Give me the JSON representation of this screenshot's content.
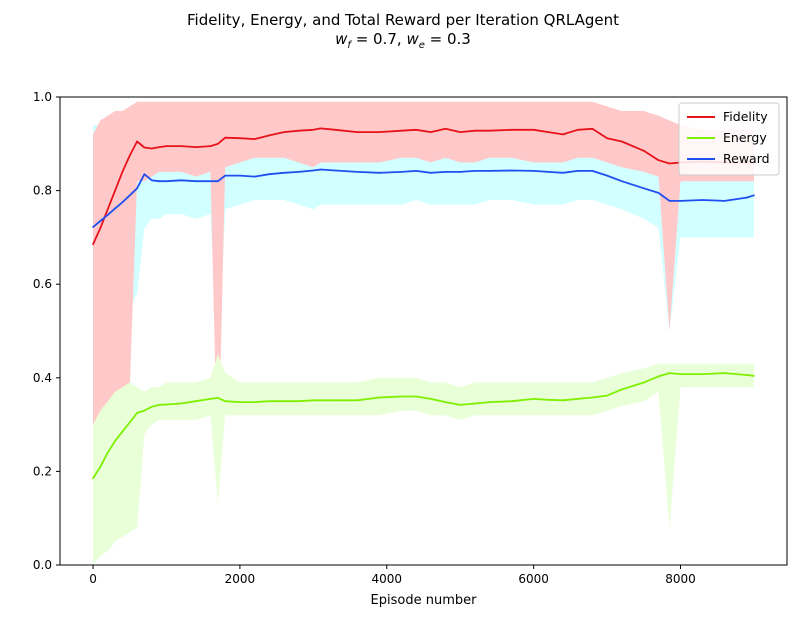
{
  "chart_data": {
    "type": "line",
    "title": "Fidelity, Energy, and Total Reward per Iteration QRLAgent",
    "subtitle": "w_f = 0.7, w_e = 0.3",
    "xlabel": "Episode number",
    "ylabel": "",
    "xlim": [
      -450,
      9450
    ],
    "ylim": [
      0.0,
      1.0
    ],
    "xticks": [
      0,
      2000,
      4000,
      6000,
      8000
    ],
    "xtick_labels": [
      "0",
      "2000",
      "4000",
      "6000",
      "8000"
    ],
    "yticks": [
      0.0,
      0.2,
      0.4,
      0.6,
      0.8,
      1.0
    ],
    "ytick_labels": [
      "0.0",
      "0.2",
      "0.4",
      "0.6",
      "0.8",
      "1.0"
    ],
    "grid": false,
    "legend_position": "top-right",
    "x": [
      0,
      100,
      200,
      300,
      400,
      500,
      600,
      700,
      800,
      900,
      1000,
      1200,
      1400,
      1600,
      1700,
      1800,
      2000,
      2200,
      2400,
      2600,
      2800,
      3000,
      3100,
      3300,
      3600,
      3900,
      4200,
      4400,
      4600,
      4800,
      5000,
      5200,
      5400,
      5700,
      6000,
      6200,
      6400,
      6600,
      6800,
      7000,
      7200,
      7500,
      7700,
      7850,
      8000,
      8300,
      8600,
      8900,
      9000
    ],
    "series": [
      {
        "name": "Fidelity",
        "color": "#e8121b",
        "band_color": "#ffc9c9",
        "values": [
          0.685,
          0.72,
          0.76,
          0.8,
          0.84,
          0.875,
          0.905,
          0.892,
          0.89,
          0.893,
          0.895,
          0.895,
          0.893,
          0.895,
          0.9,
          0.913,
          0.912,
          0.91,
          0.918,
          0.925,
          0.928,
          0.93,
          0.933,
          0.93,
          0.925,
          0.925,
          0.928,
          0.93,
          0.925,
          0.932,
          0.925,
          0.928,
          0.928,
          0.93,
          0.93,
          0.925,
          0.92,
          0.93,
          0.932,
          0.912,
          0.905,
          0.885,
          0.865,
          0.858,
          0.86,
          0.862,
          0.86,
          0.86,
          0.86
        ],
        "band_low": [
          0.08,
          0.14,
          0.2,
          0.24,
          0.3,
          0.38,
          0.82,
          0.82,
          0.83,
          0.84,
          0.84,
          0.84,
          0.83,
          0.84,
          0.18,
          0.85,
          0.86,
          0.87,
          0.87,
          0.87,
          0.86,
          0.85,
          0.86,
          0.86,
          0.86,
          0.86,
          0.87,
          0.87,
          0.86,
          0.87,
          0.86,
          0.86,
          0.87,
          0.87,
          0.86,
          0.86,
          0.86,
          0.87,
          0.87,
          0.86,
          0.85,
          0.84,
          0.83,
          0.5,
          0.82,
          0.82,
          0.82,
          0.82,
          0.82
        ],
        "band_high": [
          0.92,
          0.95,
          0.96,
          0.97,
          0.97,
          0.98,
          0.99,
          0.99,
          0.99,
          0.99,
          0.99,
          0.99,
          0.99,
          0.99,
          0.99,
          0.99,
          0.99,
          0.99,
          0.99,
          0.99,
          0.99,
          0.99,
          0.99,
          0.99,
          0.99,
          0.99,
          0.99,
          0.99,
          0.99,
          0.99,
          0.99,
          0.99,
          0.99,
          0.99,
          0.99,
          0.99,
          0.99,
          0.99,
          0.99,
          0.98,
          0.97,
          0.97,
          0.96,
          0.95,
          0.94,
          0.93,
          0.93,
          0.93,
          0.93
        ]
      },
      {
        "name": "Energy",
        "color": "#7fef00",
        "band_color": "#e8ffd8",
        "values": [
          0.185,
          0.21,
          0.24,
          0.265,
          0.285,
          0.305,
          0.325,
          0.33,
          0.338,
          0.342,
          0.343,
          0.345,
          0.35,
          0.355,
          0.357,
          0.35,
          0.348,
          0.348,
          0.35,
          0.35,
          0.35,
          0.352,
          0.352,
          0.352,
          0.352,
          0.358,
          0.36,
          0.36,
          0.355,
          0.348,
          0.342,
          0.345,
          0.348,
          0.35,
          0.355,
          0.353,
          0.352,
          0.355,
          0.358,
          0.362,
          0.375,
          0.39,
          0.403,
          0.41,
          0.408,
          0.408,
          0.41,
          0.406,
          0.404
        ],
        "band_low": [
          0.0,
          0.02,
          0.03,
          0.05,
          0.06,
          0.07,
          0.08,
          0.28,
          0.3,
          0.31,
          0.31,
          0.31,
          0.31,
          0.32,
          0.13,
          0.32,
          0.32,
          0.32,
          0.32,
          0.32,
          0.32,
          0.32,
          0.32,
          0.32,
          0.32,
          0.32,
          0.33,
          0.33,
          0.32,
          0.32,
          0.31,
          0.32,
          0.32,
          0.32,
          0.32,
          0.32,
          0.32,
          0.32,
          0.32,
          0.33,
          0.34,
          0.35,
          0.37,
          0.08,
          0.38,
          0.38,
          0.38,
          0.38,
          0.38
        ],
        "band_high": [
          0.3,
          0.33,
          0.35,
          0.37,
          0.38,
          0.39,
          0.38,
          0.37,
          0.38,
          0.38,
          0.39,
          0.39,
          0.39,
          0.4,
          0.45,
          0.41,
          0.39,
          0.39,
          0.39,
          0.39,
          0.39,
          0.39,
          0.39,
          0.39,
          0.39,
          0.4,
          0.4,
          0.4,
          0.39,
          0.39,
          0.38,
          0.39,
          0.39,
          0.39,
          0.39,
          0.39,
          0.39,
          0.39,
          0.39,
          0.4,
          0.41,
          0.42,
          0.43,
          0.43,
          0.43,
          0.43,
          0.43,
          0.43,
          0.43
        ]
      },
      {
        "name": "Reward",
        "color": "#1f4ff0",
        "band_color": "#d2ffff",
        "values": [
          0.722,
          0.735,
          0.748,
          0.762,
          0.775,
          0.79,
          0.805,
          0.835,
          0.822,
          0.82,
          0.82,
          0.822,
          0.82,
          0.82,
          0.82,
          0.832,
          0.832,
          0.83,
          0.835,
          0.838,
          0.84,
          0.843,
          0.845,
          0.843,
          0.84,
          0.838,
          0.84,
          0.842,
          0.838,
          0.84,
          0.84,
          0.842,
          0.842,
          0.843,
          0.842,
          0.84,
          0.838,
          0.842,
          0.842,
          0.832,
          0.82,
          0.805,
          0.795,
          0.778,
          0.778,
          0.78,
          0.778,
          0.785,
          0.79
        ],
        "band_low": [
          0.25,
          0.3,
          0.35,
          0.42,
          0.5,
          0.55,
          0.58,
          0.72,
          0.74,
          0.74,
          0.75,
          0.75,
          0.74,
          0.75,
          0.4,
          0.76,
          0.77,
          0.78,
          0.78,
          0.78,
          0.77,
          0.76,
          0.77,
          0.77,
          0.77,
          0.77,
          0.77,
          0.78,
          0.77,
          0.77,
          0.77,
          0.77,
          0.78,
          0.78,
          0.77,
          0.77,
          0.77,
          0.78,
          0.78,
          0.77,
          0.76,
          0.74,
          0.72,
          0.5,
          0.7,
          0.7,
          0.7,
          0.7,
          0.7
        ],
        "band_high": [
          0.94,
          0.94,
          0.93,
          0.93,
          0.92,
          0.91,
          0.9,
          0.89,
          0.88,
          0.88,
          0.88,
          0.88,
          0.88,
          0.88,
          0.88,
          0.88,
          0.88,
          0.88,
          0.88,
          0.88,
          0.88,
          0.88,
          0.88,
          0.88,
          0.88,
          0.88,
          0.88,
          0.88,
          0.88,
          0.88,
          0.88,
          0.88,
          0.88,
          0.88,
          0.88,
          0.88,
          0.88,
          0.88,
          0.88,
          0.88,
          0.87,
          0.86,
          0.85,
          0.84,
          0.83,
          0.83,
          0.83,
          0.83,
          0.83
        ]
      }
    ]
  }
}
